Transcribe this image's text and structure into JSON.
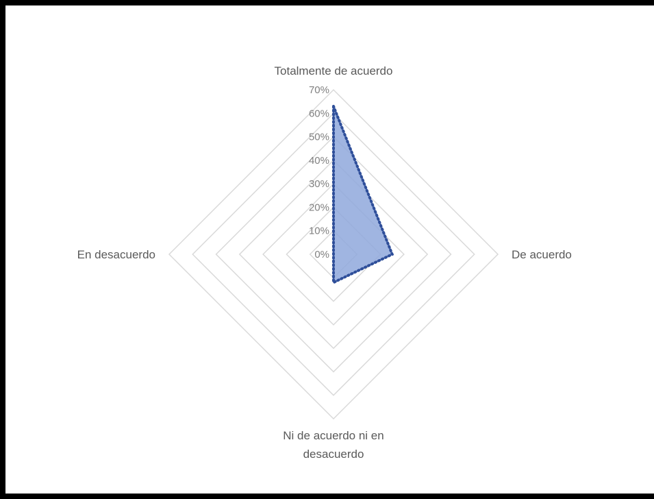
{
  "chart_data": {
    "type": "radar",
    "title": "",
    "categories": [
      "Totalmente de acuerdo",
      "De acuerdo",
      "Ni de acuerdo ni en desacuerdo",
      "En desacuerdo"
    ],
    "category_label_lines": [
      [
        "Totalmente de acuerdo"
      ],
      [
        "De acuerdo"
      ],
      [
        "Ni de acuerdo ni en",
        "desacuerdo"
      ],
      [
        "En desacuerdo"
      ]
    ],
    "r_ticks": [
      0,
      10,
      20,
      30,
      40,
      50,
      60,
      70
    ],
    "r_tick_labels": [
      "0%",
      "10%",
      "20%",
      "30%",
      "40%",
      "50%",
      "60%",
      "70%"
    ],
    "rlim": [
      0,
      70
    ],
    "series": [
      {
        "values": [
          63,
          25,
          12,
          0
        ]
      }
    ],
    "grid": true,
    "legend": "none",
    "colors": {
      "fill": "#8FA8DC",
      "line": "#2F4F9A",
      "grid": "#D9D9D9",
      "tick_text": "#7F7F7F",
      "category_text": "#595959",
      "frame": "#000000"
    }
  }
}
